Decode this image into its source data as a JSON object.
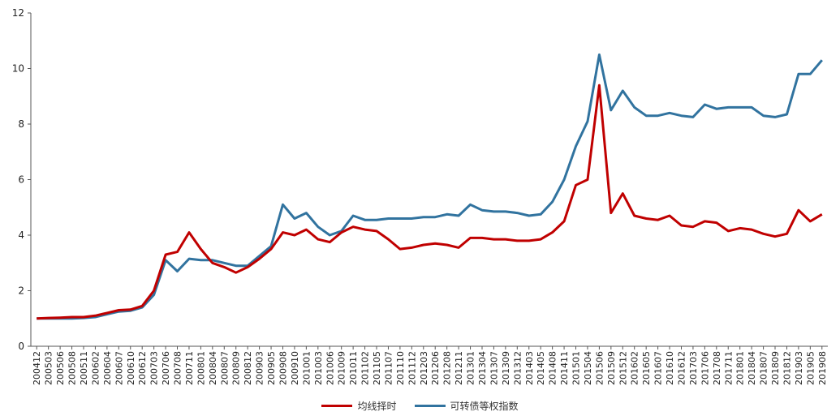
{
  "chart_data": {
    "type": "line",
    "title": "",
    "xlabel": "",
    "ylabel": "",
    "ylim": [
      0,
      12
    ],
    "yticks": [
      0,
      2,
      4,
      6,
      8,
      10,
      12
    ],
    "grid": false,
    "legend_position": "bottom-center",
    "x": [
      "200412",
      "200503",
      "200506",
      "200508",
      "200511",
      "200602",
      "200604",
      "200607",
      "200610",
      "200612",
      "200703",
      "200706",
      "200708",
      "200711",
      "200801",
      "200804",
      "200807",
      "200809",
      "200812",
      "200903",
      "200905",
      "200908",
      "200910",
      "201001",
      "201003",
      "201006",
      "201009",
      "201011",
      "201102",
      "201105",
      "201107",
      "201110",
      "201112",
      "201203",
      "201206",
      "201208",
      "201211",
      "201301",
      "201304",
      "201307",
      "201309",
      "201312",
      "201403",
      "201405",
      "201408",
      "201411",
      "201501",
      "201504",
      "201506",
      "201509",
      "201512",
      "201602",
      "201605",
      "201607",
      "201610",
      "201612",
      "201703",
      "201706",
      "201708",
      "201711",
      "201801",
      "201804",
      "201807",
      "201809",
      "201812",
      "201903",
      "201905",
      "201908"
    ],
    "series": [
      {
        "name": "均线择时",
        "color": "#c00000",
        "values": [
          1.0,
          1.02,
          1.03,
          1.05,
          1.05,
          1.1,
          1.2,
          1.3,
          1.32,
          1.45,
          2.0,
          3.3,
          3.4,
          4.1,
          3.5,
          3.0,
          2.85,
          2.65,
          2.85,
          3.15,
          3.5,
          4.1,
          4.0,
          4.2,
          3.85,
          3.75,
          4.1,
          4.3,
          4.2,
          4.15,
          3.85,
          3.5,
          3.55,
          3.65,
          3.7,
          3.65,
          3.55,
          3.9,
          3.9,
          3.85,
          3.85,
          3.8,
          3.8,
          3.85,
          4.1,
          4.5,
          5.8,
          6.0,
          9.4,
          4.8,
          5.5,
          4.7,
          4.6,
          4.55,
          4.7,
          4.35,
          4.3,
          4.5,
          4.45,
          4.15,
          4.25,
          4.2,
          4.05,
          3.95,
          4.05,
          4.9,
          4.5,
          4.75
        ]
      },
      {
        "name": "可转债等权指数",
        "color": "#31739f",
        "values": [
          1.0,
          1.0,
          1.0,
          1.0,
          1.02,
          1.05,
          1.15,
          1.25,
          1.28,
          1.4,
          1.85,
          3.1,
          2.7,
          3.15,
          3.1,
          3.1,
          3.0,
          2.9,
          2.9,
          3.25,
          3.6,
          5.1,
          4.6,
          4.8,
          4.3,
          4.0,
          4.15,
          4.7,
          4.55,
          4.55,
          4.6,
          4.6,
          4.6,
          4.65,
          4.65,
          4.75,
          4.7,
          5.1,
          4.9,
          4.85,
          4.85,
          4.8,
          4.7,
          4.75,
          5.2,
          6.0,
          7.2,
          8.1,
          10.5,
          8.5,
          9.2,
          8.6,
          8.3,
          8.3,
          8.4,
          8.3,
          8.25,
          8.7,
          8.55,
          8.6,
          8.6,
          8.6,
          8.3,
          8.25,
          8.35,
          9.8,
          9.8,
          10.3
        ]
      }
    ]
  }
}
